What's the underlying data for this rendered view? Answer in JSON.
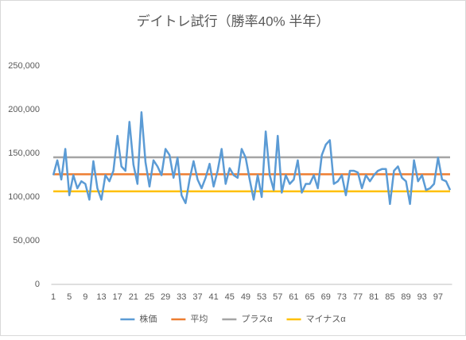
{
  "chart_data": {
    "type": "line",
    "title": "デイトレ試行（勝率40% 半年）",
    "categories": [
      "1",
      null,
      null,
      null,
      "5",
      null,
      null,
      null,
      "9",
      null,
      null,
      null,
      "13",
      null,
      null,
      null,
      "17",
      null,
      null,
      null,
      "21",
      null,
      null,
      null,
      "25",
      null,
      null,
      null,
      "29",
      null,
      null,
      null,
      "33",
      null,
      null,
      null,
      "37",
      null,
      null,
      null,
      "41",
      null,
      null,
      null,
      "45",
      null,
      null,
      null,
      "49",
      null,
      null,
      null,
      "53",
      null,
      null,
      null,
      "57",
      null,
      null,
      null,
      "61",
      null,
      null,
      null,
      "65",
      null,
      null,
      null,
      "69",
      null,
      null,
      null,
      "73",
      null,
      null,
      null,
      "77",
      null,
      null,
      null,
      "81",
      null,
      null,
      null,
      "85",
      null,
      null,
      null,
      "89",
      null,
      null,
      null,
      "93",
      null,
      null,
      null,
      "97",
      null,
      null,
      null
    ],
    "series": [
      {
        "name": "株価",
        "color": "#5b9bd5",
        "values": [
          125000,
          142000,
          120000,
          155000,
          102000,
          125000,
          110000,
          118000,
          115000,
          97000,
          141000,
          110000,
          97000,
          125000,
          118000,
          130000,
          170000,
          135000,
          130000,
          186000,
          137000,
          115000,
          197000,
          140000,
          112000,
          142000,
          135000,
          125000,
          155000,
          148000,
          122000,
          145000,
          102000,
          93000,
          120000,
          141000,
          120000,
          110000,
          122000,
          138000,
          112000,
          130000,
          155000,
          115000,
          133000,
          125000,
          122000,
          155000,
          145000,
          120000,
          97000,
          125000,
          100000,
          175000,
          125000,
          108000,
          170000,
          105000,
          125000,
          115000,
          120000,
          142000,
          105000,
          115000,
          115000,
          125000,
          110000,
          148000,
          160000,
          165000,
          115000,
          118000,
          125000,
          102000,
          130000,
          130000,
          128000,
          110000,
          125000,
          118000,
          125000,
          130000,
          132000,
          132000,
          92000,
          130000,
          135000,
          122000,
          118000,
          92000,
          142000,
          118000,
          125000,
          108000,
          110000,
          115000,
          145000,
          120000,
          118000,
          108000
        ]
      },
      {
        "name": "平均",
        "color": "#ed7d31",
        "values": [
          126000,
          126000,
          126000,
          126000,
          126000,
          126000,
          126000,
          126000,
          126000,
          126000,
          126000,
          126000,
          126000,
          126000,
          126000,
          126000,
          126000,
          126000,
          126000,
          126000,
          126000,
          126000,
          126000,
          126000,
          126000,
          126000,
          126000,
          126000,
          126000,
          126000,
          126000,
          126000,
          126000,
          126000,
          126000,
          126000,
          126000,
          126000,
          126000,
          126000,
          126000,
          126000,
          126000,
          126000,
          126000,
          126000,
          126000,
          126000,
          126000,
          126000,
          126000,
          126000,
          126000,
          126000,
          126000,
          126000,
          126000,
          126000,
          126000,
          126000,
          126000,
          126000,
          126000,
          126000,
          126000,
          126000,
          126000,
          126000,
          126000,
          126000,
          126000,
          126000,
          126000,
          126000,
          126000,
          126000,
          126000,
          126000,
          126000,
          126000,
          126000,
          126000,
          126000,
          126000,
          126000,
          126000,
          126000,
          126000,
          126000,
          126000,
          126000,
          126000,
          126000,
          126000,
          126000,
          126000,
          126000,
          126000,
          126000,
          126000
        ]
      },
      {
        "name": "プラスα",
        "color": "#a5a5a5",
        "values": [
          145500,
          145500,
          145500,
          145500,
          145500,
          145500,
          145500,
          145500,
          145500,
          145500,
          145500,
          145500,
          145500,
          145500,
          145500,
          145500,
          145500,
          145500,
          145500,
          145500,
          145500,
          145500,
          145500,
          145500,
          145500,
          145500,
          145500,
          145500,
          145500,
          145500,
          145500,
          145500,
          145500,
          145500,
          145500,
          145500,
          145500,
          145500,
          145500,
          145500,
          145500,
          145500,
          145500,
          145500,
          145500,
          145500,
          145500,
          145500,
          145500,
          145500,
          145500,
          145500,
          145500,
          145500,
          145500,
          145500,
          145500,
          145500,
          145500,
          145500,
          145500,
          145500,
          145500,
          145500,
          145500,
          145500,
          145500,
          145500,
          145500,
          145500,
          145500,
          145500,
          145500,
          145500,
          145500,
          145500,
          145500,
          145500,
          145500,
          145500,
          145500,
          145500,
          145500,
          145500,
          145500,
          145500,
          145500,
          145500,
          145500,
          145500,
          145500,
          145500,
          145500,
          145500,
          145500,
          145500,
          145500,
          145500,
          145500,
          145500
        ]
      },
      {
        "name": "マイナスα",
        "color": "#ffc000",
        "values": [
          106500,
          106500,
          106500,
          106500,
          106500,
          106500,
          106500,
          106500,
          106500,
          106500,
          106500,
          106500,
          106500,
          106500,
          106500,
          106500,
          106500,
          106500,
          106500,
          106500,
          106500,
          106500,
          106500,
          106500,
          106500,
          106500,
          106500,
          106500,
          106500,
          106500,
          106500,
          106500,
          106500,
          106500,
          106500,
          106500,
          106500,
          106500,
          106500,
          106500,
          106500,
          106500,
          106500,
          106500,
          106500,
          106500,
          106500,
          106500,
          106500,
          106500,
          106500,
          106500,
          106500,
          106500,
          106500,
          106500,
          106500,
          106500,
          106500,
          106500,
          106500,
          106500,
          106500,
          106500,
          106500,
          106500,
          106500,
          106500,
          106500,
          106500,
          106500,
          106500,
          106500,
          106500,
          106500,
          106500,
          106500,
          106500,
          106500,
          106500,
          106500,
          106500,
          106500,
          106500,
          106500,
          106500,
          106500,
          106500,
          106500,
          106500,
          106500,
          106500,
          106500,
          106500,
          106500,
          106500,
          106500,
          106500,
          106500,
          106500
        ]
      }
    ],
    "ylim": [
      0,
      250000
    ],
    "yticks": [
      0,
      {
        "value": 50000,
        "label": "50,000"
      },
      {
        "value": 100000,
        "label": "100,000"
      },
      {
        "value": 150000,
        "label": "150,000"
      },
      {
        "value": 200000,
        "label": "200,000"
      },
      {
        "value": 250000,
        "label": "250,000"
      }
    ],
    "grid": false,
    "legend": "bottom"
  }
}
